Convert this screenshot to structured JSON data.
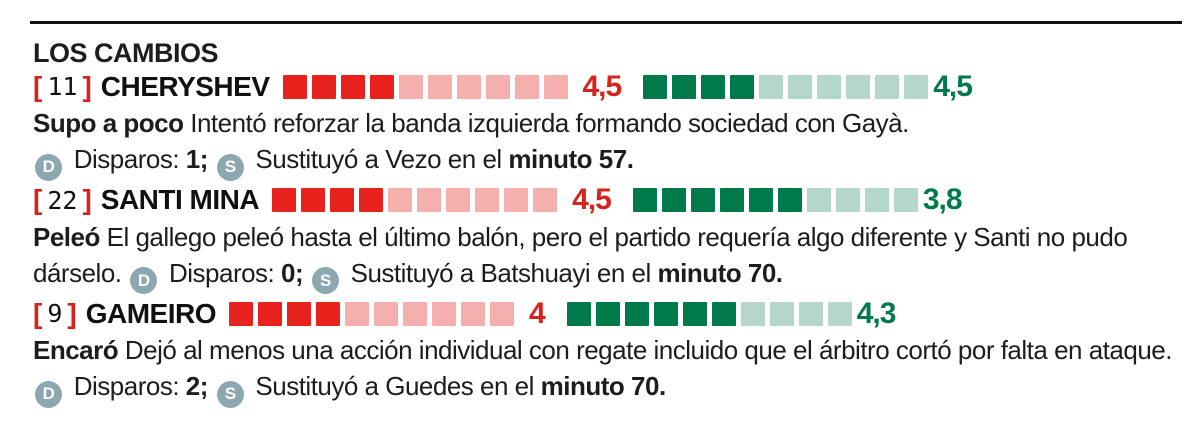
{
  "title": "LOS CAMBIOS",
  "ui": {
    "bracket_left": "[",
    "bracket_right": "]",
    "shots_icon_letter": "D",
    "sub_icon_letter": "S"
  },
  "colors": {
    "red": "#d8231d",
    "red_sq": "#e8231d",
    "pink": "#f5b0ad",
    "green": "#007a4b",
    "lgreen": "#b5d6ca",
    "icon": "#8ca7b0",
    "text": "#1d1d1b"
  },
  "chart_data": {
    "type": "bar",
    "title": "LOS CAMBIOS",
    "note": "per-player 10-square rating bars: red (left) and green (right)",
    "categories": [
      "CHERYSHEV",
      "SANTI MINA",
      "GAMEIRO"
    ],
    "series": [
      {
        "name": "red_filled_squares",
        "values": [
          4,
          4,
          4
        ]
      },
      {
        "name": "red_rating_label",
        "values": [
          "4,5",
          "4,5",
          "4"
        ]
      },
      {
        "name": "green_filled_squares",
        "values": [
          4,
          6,
          6
        ]
      },
      {
        "name": "green_rating_label",
        "values": [
          "4,5",
          "3,8",
          "4,3"
        ]
      }
    ],
    "squares_total_per_bar": 10
  },
  "players": [
    {
      "number": "11",
      "name": "CHERYSHEV",
      "red_bar": {
        "filled": 4,
        "total": 10
      },
      "red_rating": "4,5",
      "green_bar": {
        "filled": 4,
        "total": 10
      },
      "green_rating": "4,5",
      "lead": "Supo a poco",
      "description": "Intentó reforzar la banda izquierda formando sociedad con Gayà.",
      "shots_label": "Disparos:",
      "shots_value": "1;",
      "sub_prefix": "Sustituyó a Vezo en el",
      "sub_bold": "minuto 57."
    },
    {
      "number": "22",
      "name": "SANTI MINA",
      "red_bar": {
        "filled": 4,
        "total": 10
      },
      "red_rating": "4,5",
      "green_bar": {
        "filled": 6,
        "total": 10
      },
      "green_rating": "3,8",
      "lead": "Peleó",
      "description": "El gallego peleó hasta el último balón, pero el partido requería algo diferente y Santi no pudo dárselo.",
      "shots_label": "Disparos:",
      "shots_value": "0;",
      "sub_prefix": "Sustituyó a Batshuayi en el",
      "sub_bold": "minuto 70."
    },
    {
      "number": "9",
      "name": "GAMEIRO",
      "red_bar": {
        "filled": 4,
        "total": 10
      },
      "red_rating": "4",
      "green_bar": {
        "filled": 6,
        "total": 10
      },
      "green_rating": "4,3",
      "lead": "Encaró",
      "description": "Dejó al menos una acción individual con regate incluido que el árbitro cortó por falta en ataque.",
      "shots_label": "Disparos:",
      "shots_value": "2;",
      "sub_prefix": "Sustituyó a Guedes en el",
      "sub_bold": "minuto 70."
    }
  ]
}
